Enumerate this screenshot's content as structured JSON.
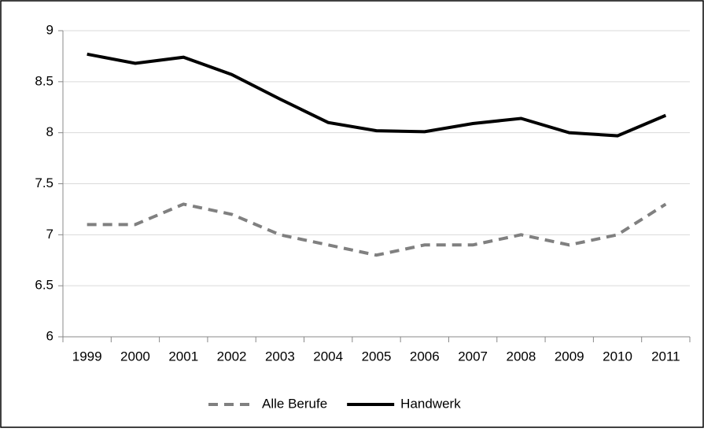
{
  "chart_data": {
    "type": "line",
    "categories": [
      "1999",
      "2000",
      "2001",
      "2002",
      "2003",
      "2004",
      "2005",
      "2006",
      "2007",
      "2008",
      "2009",
      "2010",
      "2011"
    ],
    "series": [
      {
        "name": "Alle Berufe",
        "color": "#808080",
        "dashed": true,
        "values": [
          7.1,
          7.1,
          7.3,
          7.2,
          7.0,
          6.9,
          6.8,
          6.9,
          6.9,
          7.0,
          6.9,
          7.0,
          7.3
        ]
      },
      {
        "name": "Handwerk",
        "color": "#000000",
        "dashed": false,
        "values": [
          8.77,
          8.68,
          8.74,
          8.57,
          8.33,
          8.1,
          8.02,
          8.01,
          8.09,
          8.14,
          8.0,
          7.97,
          8.17
        ]
      }
    ],
    "ylim": [
      6,
      9
    ],
    "yticks": [
      6,
      6.5,
      7,
      7.5,
      8,
      8.5,
      9
    ],
    "grid": true,
    "legend": "bottom"
  }
}
